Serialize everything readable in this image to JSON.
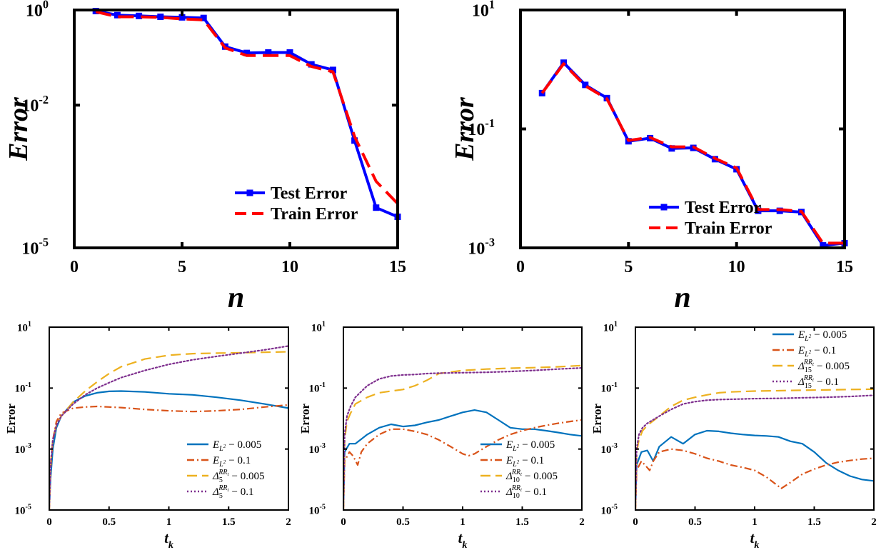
{
  "chart_data": [
    {
      "type": "line",
      "ylog": true,
      "xlim": [
        0,
        15
      ],
      "ylim": [
        1e-05,
        1
      ],
      "xticks": [
        "0",
        "5",
        "10",
        "15"
      ],
      "xtick_values": [
        0,
        5,
        10,
        15
      ],
      "yticks": [
        {
          "base": "10",
          "exp": "-5",
          "value": 1e-05
        },
        {
          "base": "10",
          "exp": "-2",
          "value": 0.01
        },
        {
          "base": "10",
          "exp": "0",
          "value": 1
        }
      ],
      "xlabel": "n",
      "ylabel": "Error",
      "legend_position": "bottom-right",
      "grid": false,
      "series": [
        {
          "name": "Test Error",
          "color": "#0000ff",
          "style": "solid-square",
          "x": [
            1,
            2,
            3,
            4,
            5,
            6,
            7,
            8,
            9,
            10,
            11,
            12,
            13,
            14,
            15
          ],
          "y": [
            0.95,
            0.78,
            0.75,
            0.72,
            0.7,
            0.68,
            0.17,
            0.125,
            0.128,
            0.128,
            0.072,
            0.055,
            0.0018,
            7e-05,
            4.5e-05
          ]
        },
        {
          "name": "Train Error",
          "color": "#ff0000",
          "style": "dashed",
          "x": [
            1,
            2,
            3,
            4,
            5,
            6,
            7,
            8,
            9,
            10,
            11,
            12,
            13,
            14,
            15
          ],
          "y": [
            0.92,
            0.72,
            0.72,
            0.7,
            0.65,
            0.62,
            0.16,
            0.11,
            0.11,
            0.11,
            0.065,
            0.05,
            0.0022,
            0.00025,
            8.5e-05
          ]
        }
      ]
    },
    {
      "type": "line",
      "ylog": true,
      "xlim": [
        0,
        15
      ],
      "ylim": [
        0.001,
        10
      ],
      "xticks": [
        "0",
        "5",
        "10",
        "15"
      ],
      "xtick_values": [
        0,
        5,
        10,
        15
      ],
      "yticks": [
        {
          "base": "10",
          "exp": "-3",
          "value": 0.001
        },
        {
          "base": "10",
          "exp": "-1",
          "value": 0.1
        },
        {
          "base": "10",
          "exp": "1",
          "value": 10
        }
      ],
      "xlabel": "n",
      "ylabel": "Error",
      "legend_position": "bottom-right",
      "grid": false,
      "series": [
        {
          "name": "Test Error",
          "color": "#0000ff",
          "style": "solid-square",
          "x": [
            1,
            2,
            3,
            4,
            5,
            6,
            7,
            8,
            9,
            10,
            11,
            12,
            13,
            14,
            15
          ],
          "y": [
            0.4,
            1.3,
            0.55,
            0.33,
            0.062,
            0.07,
            0.047,
            0.048,
            0.031,
            0.021,
            0.0042,
            0.0042,
            0.004,
            0.0011,
            0.0012
          ]
        },
        {
          "name": "Train Error",
          "color": "#ff0000",
          "style": "dashed",
          "x": [
            1,
            2,
            3,
            4,
            5,
            6,
            7,
            8,
            9,
            10,
            11,
            12,
            13,
            14,
            15
          ],
          "y": [
            0.4,
            1.25,
            0.53,
            0.32,
            0.064,
            0.072,
            0.05,
            0.05,
            0.032,
            0.022,
            0.0044,
            0.0044,
            0.0041,
            0.0012,
            0.0012
          ]
        }
      ]
    },
    {
      "type": "line",
      "ylog": true,
      "xlim": [
        0,
        2
      ],
      "ylim": [
        1e-05,
        10
      ],
      "xticks": [
        "0",
        "0.5",
        "1",
        "1.5",
        "2"
      ],
      "xtick_values": [
        0,
        0.5,
        1,
        1.5,
        2
      ],
      "yticks": [
        {
          "base": "10",
          "exp": "-5",
          "value": 1e-05
        },
        {
          "base": "10",
          "exp": "-3",
          "value": 0.001
        },
        {
          "base": "10",
          "exp": "-1",
          "value": 0.1
        },
        {
          "base": "10",
          "exp": "1",
          "value": 10
        }
      ],
      "xlabel_base": "t",
      "xlabel_sub": "k",
      "ylabel": "Error",
      "legend_position": "bottom-right",
      "grid": false,
      "series": [
        {
          "name": "E_{L²} − 0.005",
          "color": "#0072bd",
          "style": "solid",
          "x": [
            0,
            0.01,
            0.03,
            0.06,
            0.1,
            0.2,
            0.3,
            0.4,
            0.5,
            0.6,
            0.8,
            1.0,
            1.2,
            1.4,
            1.6,
            1.8,
            2.0
          ],
          "y": [
            1e-05,
            0.0001,
            0.001,
            0.005,
            0.012,
            0.035,
            0.055,
            0.07,
            0.078,
            0.08,
            0.075,
            0.065,
            0.06,
            0.05,
            0.04,
            0.03,
            0.022
          ]
        },
        {
          "name": "E_{L²} − 0.1",
          "color": "#d95319",
          "style": "dashdot",
          "x": [
            0,
            0.01,
            0.03,
            0.06,
            0.1,
            0.2,
            0.3,
            0.4,
            0.5,
            0.6,
            0.8,
            1.0,
            1.2,
            1.4,
            1.6,
            1.8,
            2.0
          ],
          "y": [
            1e-05,
            0.0002,
            0.002,
            0.008,
            0.015,
            0.022,
            0.024,
            0.025,
            0.024,
            0.023,
            0.02,
            0.018,
            0.017,
            0.018,
            0.02,
            0.024,
            0.028
          ]
        },
        {
          "name": "Δ_5^{RR_t} − 0.005",
          "color": "#edb120",
          "style": "dashed",
          "x": [
            0,
            0.01,
            0.03,
            0.06,
            0.1,
            0.2,
            0.3,
            0.4,
            0.5,
            0.6,
            0.8,
            1.0,
            1.2,
            1.4,
            1.6,
            1.8,
            2.0
          ],
          "y": [
            1e-05,
            0.0003,
            0.002,
            0.006,
            0.012,
            0.035,
            0.08,
            0.16,
            0.3,
            0.5,
            0.9,
            1.2,
            1.35,
            1.4,
            1.45,
            1.5,
            1.55
          ]
        },
        {
          "name": "Δ_5^{RR_t} − 0.1",
          "color": "#7e2f8e",
          "style": "dotted",
          "x": [
            0,
            0.01,
            0.03,
            0.06,
            0.1,
            0.2,
            0.3,
            0.4,
            0.5,
            0.6,
            0.8,
            1.0,
            1.2,
            1.4,
            1.6,
            1.8,
            2.0
          ],
          "y": [
            1e-05,
            0.0003,
            0.002,
            0.006,
            0.012,
            0.03,
            0.06,
            0.1,
            0.15,
            0.22,
            0.38,
            0.6,
            0.85,
            1.1,
            1.4,
            1.8,
            2.4
          ]
        }
      ]
    },
    {
      "type": "line",
      "ylog": true,
      "xlim": [
        0,
        2
      ],
      "ylim": [
        1e-05,
        10
      ],
      "xticks": [
        "0",
        "0.5",
        "1",
        "1.5",
        "2"
      ],
      "xtick_values": [
        0,
        0.5,
        1,
        1.5,
        2
      ],
      "yticks": [
        {
          "base": "10",
          "exp": "-5",
          "value": 1e-05
        },
        {
          "base": "10",
          "exp": "-3",
          "value": 0.001
        },
        {
          "base": "10",
          "exp": "-1",
          "value": 0.1
        },
        {
          "base": "10",
          "exp": "1",
          "value": 10
        }
      ],
      "xlabel_base": "t",
      "xlabel_sub": "k",
      "ylabel": "Error",
      "legend_position": "bottom-right",
      "grid": false,
      "series": [
        {
          "name": "E_{L²} − 0.005",
          "color": "#0072bd",
          "style": "solid",
          "x": [
            0,
            0.01,
            0.05,
            0.1,
            0.2,
            0.3,
            0.4,
            0.5,
            0.6,
            0.7,
            0.8,
            0.9,
            1.0,
            1.1,
            1.2,
            1.3,
            1.4,
            1.5,
            1.6,
            1.7,
            1.8,
            1.9,
            2.0
          ],
          "y": [
            1e-05,
            0.0008,
            0.0015,
            0.0015,
            0.003,
            0.005,
            0.0065,
            0.0055,
            0.006,
            0.0075,
            0.009,
            0.012,
            0.016,
            0.019,
            0.016,
            0.009,
            0.005,
            0.0045,
            0.0045,
            0.004,
            0.0035,
            0.003,
            0.0027
          ]
        },
        {
          "name": "E_{L²} − 0.1",
          "color": "#d95319",
          "style": "dashdot",
          "x": [
            0,
            0.01,
            0.05,
            0.08,
            0.12,
            0.15,
            0.2,
            0.3,
            0.4,
            0.5,
            0.6,
            0.7,
            0.8,
            0.9,
            1.0,
            1.05,
            1.1,
            1.2,
            1.3,
            1.4,
            1.5,
            1.6,
            1.7,
            1.8,
            1.9,
            2.0
          ],
          "y": [
            1e-05,
            0.0004,
            0.0008,
            0.0006,
            0.0003,
            0.0008,
            0.0015,
            0.003,
            0.0045,
            0.0045,
            0.0038,
            0.003,
            0.002,
            0.0012,
            0.0007,
            0.0006,
            0.0007,
            0.0012,
            0.002,
            0.003,
            0.004,
            0.005,
            0.006,
            0.007,
            0.008,
            0.009
          ]
        },
        {
          "name": "Δ_10^{RR_t} − 0.005",
          "color": "#edb120",
          "style": "dashed",
          "x": [
            0,
            0.01,
            0.03,
            0.06,
            0.1,
            0.2,
            0.3,
            0.4,
            0.5,
            0.6,
            0.7,
            0.8,
            1.0,
            1.2,
            1.4,
            1.6,
            1.8,
            2.0
          ],
          "y": [
            1e-05,
            0.002,
            0.008,
            0.015,
            0.03,
            0.05,
            0.07,
            0.08,
            0.09,
            0.12,
            0.18,
            0.3,
            0.38,
            0.42,
            0.45,
            0.47,
            0.5,
            0.55
          ]
        },
        {
          "name": "Δ_10^{RR_t} − 0.1",
          "color": "#7e2f8e",
          "style": "dotted",
          "x": [
            0,
            0.01,
            0.03,
            0.06,
            0.1,
            0.2,
            0.3,
            0.4,
            0.5,
            0.6,
            0.7,
            0.8,
            1.0,
            1.2,
            1.4,
            1.6,
            1.8,
            2.0
          ],
          "y": [
            1e-05,
            0.003,
            0.012,
            0.025,
            0.05,
            0.12,
            0.2,
            0.25,
            0.27,
            0.28,
            0.3,
            0.31,
            0.32,
            0.33,
            0.35,
            0.38,
            0.42,
            0.46
          ]
        }
      ]
    },
    {
      "type": "line",
      "ylog": true,
      "xlim": [
        0,
        2
      ],
      "ylim": [
        1e-05,
        10
      ],
      "xticks": [
        "0",
        "0.5",
        "1",
        "1.5",
        "2"
      ],
      "xtick_values": [
        0,
        0.5,
        1,
        1.5,
        2
      ],
      "yticks": [
        {
          "base": "10",
          "exp": "-5",
          "value": 1e-05
        },
        {
          "base": "10",
          "exp": "-3",
          "value": 0.001
        },
        {
          "base": "10",
          "exp": "-1",
          "value": 0.1
        },
        {
          "base": "10",
          "exp": "1",
          "value": 10
        }
      ],
      "xlabel_base": "t",
      "xlabel_sub": "k",
      "ylabel": "Error",
      "legend_position": "top-right",
      "grid": false,
      "series": [
        {
          "name": "E_{L²} − 0.005",
          "color": "#0072bd",
          "style": "solid",
          "x": [
            0,
            0.01,
            0.05,
            0.1,
            0.15,
            0.2,
            0.3,
            0.4,
            0.5,
            0.6,
            0.7,
            0.8,
            0.9,
            1.0,
            1.1,
            1.2,
            1.3,
            1.4,
            1.5,
            1.6,
            1.7,
            1.8,
            1.9,
            2.0
          ],
          "y": [
            1e-05,
            0.0003,
            0.0008,
            0.0009,
            0.0004,
            0.0012,
            0.0025,
            0.0015,
            0.003,
            0.004,
            0.0038,
            0.0033,
            0.003,
            0.0028,
            0.0027,
            0.0025,
            0.0018,
            0.0015,
            0.0008,
            0.00035,
            0.0002,
            0.00013,
            0.0001,
            9e-05
          ]
        },
        {
          "name": "E_{L²} − 0.1",
          "color": "#d95319",
          "style": "dashdot",
          "x": [
            0,
            0.01,
            0.05,
            0.08,
            0.12,
            0.15,
            0.2,
            0.3,
            0.4,
            0.5,
            0.6,
            0.7,
            0.8,
            0.9,
            1.0,
            1.1,
            1.2,
            1.22,
            1.3,
            1.4,
            1.5,
            1.6,
            1.7,
            1.8,
            1.9,
            2.0
          ],
          "y": [
            1e-05,
            0.0002,
            0.0004,
            0.0003,
            0.0002,
            0.0004,
            0.0008,
            0.001,
            0.0009,
            0.0007,
            0.0005,
            0.0004,
            0.0003,
            0.00025,
            0.0002,
            0.00012,
            6e-05,
            5e-05,
            8e-05,
            0.00015,
            0.00022,
            0.0003,
            0.00037,
            0.00042,
            0.00047,
            0.0005
          ]
        },
        {
          "name": "Δ_15^{RR_t} − 0.005",
          "color": "#edb120",
          "style": "dashed",
          "x": [
            0,
            0.01,
            0.03,
            0.06,
            0.1,
            0.2,
            0.3,
            0.4,
            0.5,
            0.6,
            0.7,
            0.8,
            1.0,
            1.2,
            1.4,
            1.6,
            1.8,
            2.0
          ],
          "y": [
            1e-05,
            0.0008,
            0.002,
            0.004,
            0.006,
            0.012,
            0.025,
            0.04,
            0.05,
            0.06,
            0.07,
            0.075,
            0.08,
            0.082,
            0.085,
            0.087,
            0.09,
            0.092
          ]
        },
        {
          "name": "Δ_15^{RR_t} − 0.1",
          "color": "#7e2f8e",
          "style": "dotted",
          "x": [
            0,
            0.01,
            0.03,
            0.06,
            0.1,
            0.2,
            0.3,
            0.4,
            0.5,
            0.6,
            0.7,
            0.8,
            1.0,
            1.2,
            1.4,
            1.6,
            1.8,
            2.0
          ],
          "y": [
            1e-05,
            0.001,
            0.003,
            0.005,
            0.007,
            0.012,
            0.02,
            0.03,
            0.036,
            0.04,
            0.042,
            0.043,
            0.045,
            0.046,
            0.048,
            0.05,
            0.053,
            0.058
          ]
        }
      ]
    }
  ],
  "legend_labels": [
    [
      "Test Error",
      "Train Error"
    ],
    [
      "Test Error",
      "Train Error"
    ],
    [
      {
        "base": "E",
        "sub": "L",
        "supsub": "2",
        "suffix": "− 0.005"
      },
      {
        "base": "E",
        "sub": "L",
        "supsub": "2",
        "suffix": "− 0.1"
      },
      {
        "base": "Δ",
        "sub": "5",
        "sup": "RR",
        "supsub": "t",
        "suffix": "− 0.005"
      },
      {
        "base": "Δ",
        "sub": "5",
        "sup": "RR",
        "supsub": "t",
        "suffix": "− 0.1"
      }
    ],
    [
      {
        "base": "E",
        "sub": "L",
        "supsub": "2",
        "suffix": "− 0.005"
      },
      {
        "base": "E",
        "sub": "L",
        "supsub": "2",
        "suffix": "− 0.1"
      },
      {
        "base": "Δ",
        "sub": "10",
        "sup": "RR",
        "supsub": "t",
        "suffix": "− 0.005"
      },
      {
        "base": "Δ",
        "sub": "10",
        "sup": "RR",
        "supsub": "t",
        "suffix": "− 0.1"
      }
    ],
    [
      {
        "base": "E",
        "sub": "L",
        "supsub": "2",
        "suffix": "− 0.005"
      },
      {
        "base": "E",
        "sub": "L",
        "supsub": "2",
        "suffix": "− 0.1"
      },
      {
        "base": "Δ",
        "sub": "15",
        "sup": "RR",
        "supsub": "t",
        "suffix": "− 0.005"
      },
      {
        "base": "Δ",
        "sub": "15",
        "sup": "RR",
        "supsub": "t",
        "suffix": "− 0.1"
      }
    ]
  ]
}
